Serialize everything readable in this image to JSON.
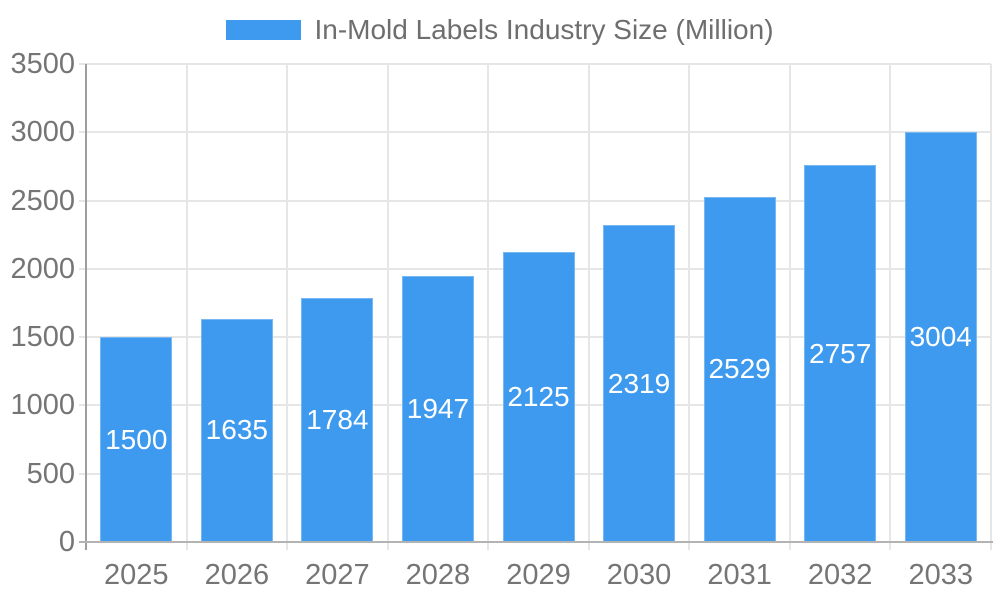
{
  "chart_data": {
    "type": "bar",
    "title": "In-Mold Labels Industry Size (Million)",
    "legend": {
      "label": "In-Mold Labels Industry Size (Million)",
      "position": "top-center",
      "swatch_color": "#3d9aee"
    },
    "categories": [
      "2025",
      "2026",
      "2027",
      "2028",
      "2029",
      "2030",
      "2031",
      "2032",
      "2033"
    ],
    "series": [
      {
        "name": "In-Mold Labels Industry Size (Million)",
        "values": [
          1500,
          1635,
          1784,
          1947,
          2125,
          2319,
          2529,
          2757,
          3004
        ]
      }
    ],
    "value_labels": {
      "visible": true,
      "position": "inside-center",
      "color": "#ffffff"
    },
    "xlabel": "",
    "ylabel": "",
    "ylim": [
      0,
      3500
    ],
    "ytick_step": 500,
    "ytick_labels": [
      "0",
      "500",
      "1000",
      "1500",
      "2000",
      "2500",
      "3000",
      "3500"
    ],
    "grid": {
      "horizontal": true,
      "vertical": true,
      "color": "#e6e6e6"
    },
    "colors": {
      "bar": "#3d9aee",
      "y_axis_line": "#9e9e9e",
      "x_axis_line": "#b3b3b3",
      "tick_text": "#757575",
      "legend_text": "#6e6e6e",
      "background": "#ffffff"
    }
  }
}
